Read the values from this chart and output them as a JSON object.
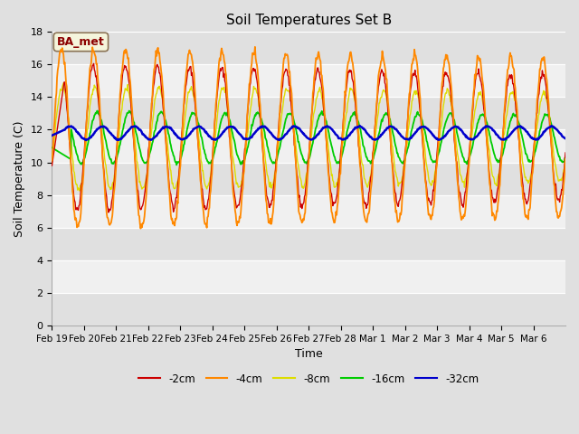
{
  "title": "Soil Temperatures Set B",
  "xlabel": "Time",
  "ylabel": "Soil Temperature (C)",
  "ylim": [
    0,
    18
  ],
  "yticks": [
    0,
    2,
    4,
    6,
    8,
    10,
    12,
    14,
    16,
    18
  ],
  "background_color": "#e0e0e0",
  "plot_bg_color": "#e8e8e8",
  "annotation_text": "BA_met",
  "annotation_color": "#8b0000",
  "annotation_bg": "#f5f5dc",
  "series_colors": {
    "-2cm": "#cc0000",
    "-4cm": "#ff8800",
    "-8cm": "#dddd00",
    "-16cm": "#00cc00",
    "-32cm": "#0000cc"
  },
  "legend_labels": [
    "-2cm",
    "-4cm",
    "-8cm",
    "-16cm",
    "-32cm"
  ],
  "n_points": 800,
  "xtick_labels": [
    "Feb 19",
    "Feb 20",
    "Feb 21",
    "Feb 22",
    "Feb 23",
    "Feb 24",
    "Feb 25",
    "Feb 26",
    "Feb 27",
    "Feb 28",
    "Mar 1",
    "Mar 2",
    "Mar 3",
    "Mar 4",
    "Mar 5",
    "Mar 6"
  ],
  "n_days": 16
}
